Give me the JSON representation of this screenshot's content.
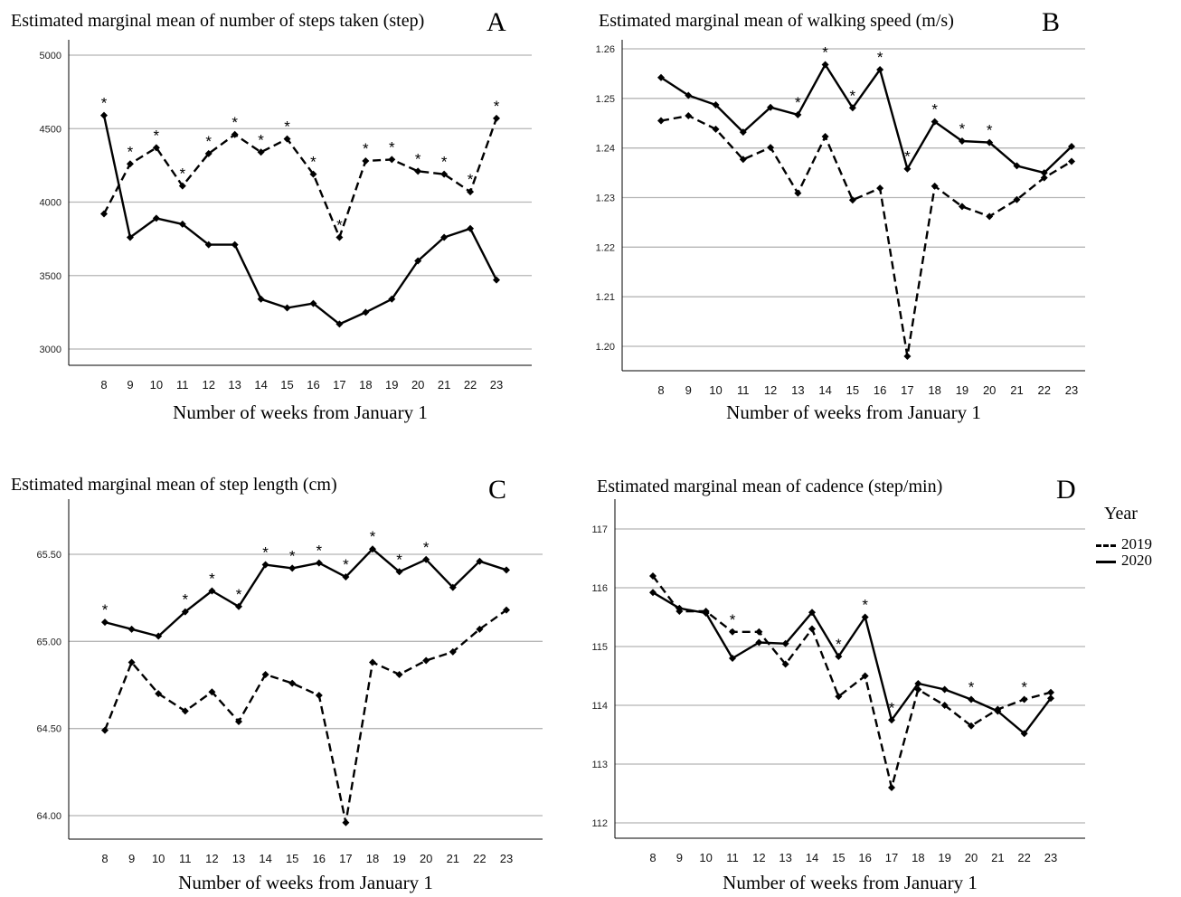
{
  "legend": {
    "title": "Year",
    "entries": [
      {
        "label": "2019",
        "style": "dashed"
      },
      {
        "label": "2020",
        "style": "solid"
      }
    ]
  },
  "marker": "*",
  "chart_data": [
    {
      "panel": "A",
      "type": "line",
      "title": "Estimated marginal mean of number of steps taken (step)",
      "xlabel": "Number of weeks from January 1",
      "x": [
        8,
        9,
        10,
        11,
        12,
        13,
        14,
        15,
        16,
        17,
        18,
        19,
        20,
        21,
        22,
        23
      ],
      "ylim": [
        2900,
        5100
      ],
      "yticks": [
        3000,
        3500,
        4000,
        4500,
        5000
      ],
      "ytick_labels": [
        "3000",
        "3500",
        "4000",
        "4500",
        "5000"
      ],
      "grid": true,
      "series": [
        {
          "name": "2019",
          "style": "dashed",
          "values": [
            3920,
            4260,
            4370,
            4110,
            4330,
            4460,
            4340,
            4430,
            4190,
            3760,
            4280,
            4290,
            4210,
            4190,
            4070,
            4570
          ]
        },
        {
          "name": "2020",
          "style": "solid",
          "values": [
            4590,
            3760,
            3890,
            3850,
            3710,
            3710,
            3340,
            3280,
            3310,
            3170,
            3250,
            3340,
            3600,
            3760,
            3820,
            3470
          ]
        }
      ],
      "significant_weeks": [
        8,
        9,
        10,
        11,
        12,
        13,
        14,
        15,
        16,
        17,
        18,
        19,
        20,
        21,
        22,
        23
      ]
    },
    {
      "panel": "B",
      "type": "line",
      "title": "Estimated marginal mean of walking speed (m/s)",
      "xlabel": "Number of weeks from January 1",
      "x": [
        8,
        9,
        10,
        11,
        12,
        13,
        14,
        15,
        16,
        17,
        18,
        19,
        20,
        21,
        22,
        23
      ],
      "ylim": [
        1.195,
        1.262
      ],
      "yticks": [
        1.2,
        1.21,
        1.22,
        1.23,
        1.24,
        1.25,
        1.26
      ],
      "ytick_labels": [
        "1.20",
        "1.21",
        "1.22",
        "1.23",
        "1.24",
        "1.25",
        "1.26"
      ],
      "grid": true,
      "series": [
        {
          "name": "2019",
          "style": "dashed",
          "values": [
            1.2455,
            1.2465,
            1.2438,
            1.2377,
            1.2401,
            1.2309,
            1.2423,
            1.2295,
            1.2319,
            1.198,
            1.2323,
            1.2282,
            1.2262,
            1.2296,
            1.234,
            1.2373
          ]
        },
        {
          "name": "2020",
          "style": "solid",
          "values": [
            1.2542,
            1.2506,
            1.2487,
            1.2432,
            1.2482,
            1.2467,
            1.2568,
            1.2481,
            1.2558,
            1.2358,
            1.2453,
            1.2414,
            1.2411,
            1.2364,
            1.235,
            1.2403
          ]
        }
      ],
      "significant_weeks": [
        13,
        14,
        15,
        16,
        17,
        18,
        19,
        20
      ]
    },
    {
      "panel": "C",
      "type": "line",
      "title": "Estimated marginal mean of step length (cm)",
      "xlabel": "Number of weeks from January 1",
      "x": [
        8,
        9,
        10,
        11,
        12,
        13,
        14,
        15,
        16,
        17,
        18,
        19,
        20,
        21,
        22,
        23
      ],
      "ylim": [
        63.86,
        65.8
      ],
      "yticks": [
        64.0,
        64.5,
        65.0,
        65.5
      ],
      "ytick_labels": [
        "64.00",
        "64.50",
        "65.00",
        "65.50"
      ],
      "grid": true,
      "series": [
        {
          "name": "2019",
          "style": "dashed",
          "values": [
            64.49,
            64.88,
            64.7,
            64.6,
            64.71,
            64.54,
            64.81,
            64.76,
            64.69,
            63.96,
            64.88,
            64.81,
            64.89,
            64.94,
            65.07,
            65.18
          ]
        },
        {
          "name": "2020",
          "style": "solid",
          "values": [
            65.11,
            65.07,
            65.03,
            65.17,
            65.29,
            65.2,
            65.44,
            65.42,
            65.45,
            65.37,
            65.53,
            65.4,
            65.47,
            65.31,
            65.46,
            65.41
          ]
        }
      ],
      "significant_weeks": [
        8,
        11,
        12,
        13,
        14,
        15,
        16,
        17,
        18,
        19,
        20
      ]
    },
    {
      "panel": "D",
      "type": "line",
      "title": "Estimated marginal mean of cadence (step/min)",
      "xlabel": "Number of weeks from January 1",
      "x": [
        8,
        9,
        10,
        11,
        12,
        13,
        14,
        15,
        16,
        17,
        18,
        19,
        20,
        21,
        22,
        23
      ],
      "ylim": [
        111.8,
        117.25
      ],
      "yticks": [
        112,
        113,
        114,
        115,
        116,
        117
      ],
      "ytick_labels": [
        "112",
        "113",
        "114",
        "115",
        "116",
        "117"
      ],
      "grid": true,
      "series": [
        {
          "name": "2019",
          "style": "dashed",
          "values": [
            116.2,
            115.6,
            115.6,
            115.25,
            115.25,
            114.7,
            115.3,
            114.15,
            114.5,
            112.6,
            114.27,
            114.0,
            113.65,
            113.93,
            114.1,
            114.22
          ]
        },
        {
          "name": "2020",
          "style": "solid",
          "values": [
            115.92,
            115.65,
            115.57,
            114.8,
            115.07,
            115.05,
            115.58,
            114.83,
            115.5,
            113.75,
            114.37,
            114.27,
            114.1,
            113.9,
            113.52,
            114.12
          ]
        }
      ],
      "significant_weeks": [
        11,
        15,
        16,
        17,
        20,
        22
      ]
    }
  ]
}
